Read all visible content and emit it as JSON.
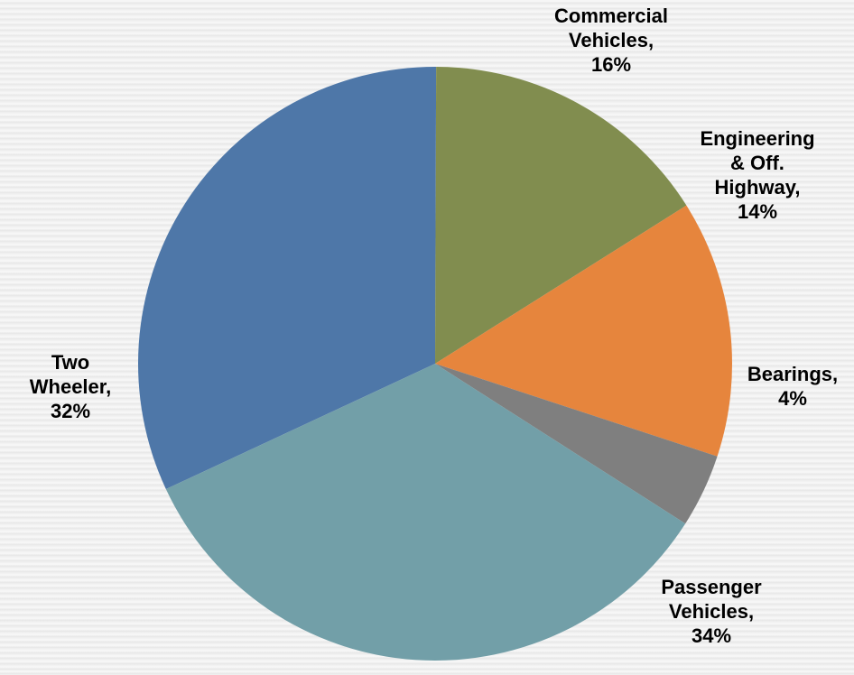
{
  "chart_data": {
    "type": "pie",
    "title": "",
    "slices": [
      {
        "category": "Two Wheeler",
        "value": 32,
        "percent_label": "32%",
        "label_lines": [
          "Two",
          "Wheeler,",
          "32%"
        ],
        "color": "#4e77a8"
      },
      {
        "category": "Commercial Vehicles",
        "value": 16,
        "percent_label": "16%",
        "label_lines": [
          "Commercial",
          "Vehicles,",
          "16%"
        ],
        "color": "#818d4f"
      },
      {
        "category": "Engineering & Off. Highway",
        "value": 14,
        "percent_label": "14%",
        "label_lines": [
          "Engineering",
          "& Off.",
          "Highway,",
          "14%"
        ],
        "color": "#e6853d"
      },
      {
        "category": "Bearings",
        "value": 4,
        "percent_label": "4%",
        "label_lines": [
          "Bearings,",
          "4%"
        ],
        "color": "#7f7f7f"
      },
      {
        "category": "Passenger Vehicles",
        "value": 34,
        "percent_label": "34%",
        "label_lines": [
          "Passenger",
          "Vehicles,",
          "34%"
        ],
        "color": "#729fa8"
      }
    ],
    "legend": "none",
    "data_labels": "outside"
  }
}
